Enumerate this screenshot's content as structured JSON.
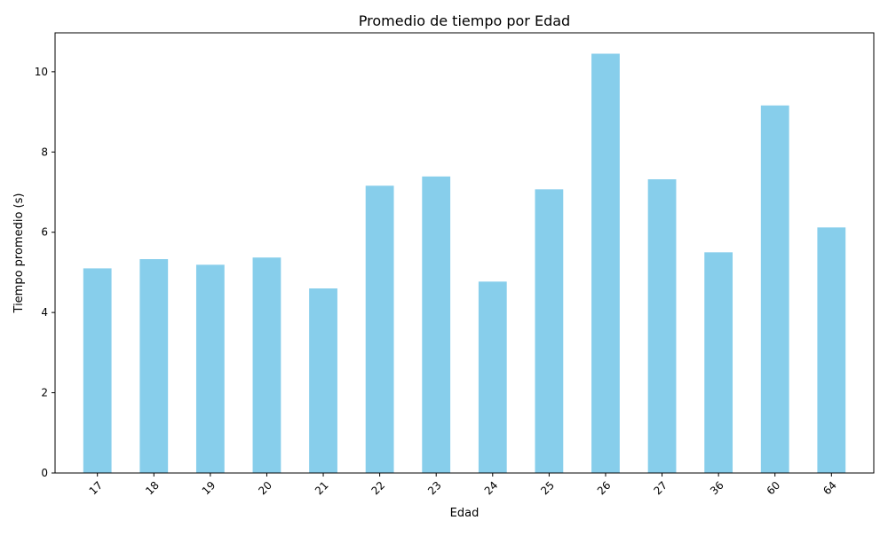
{
  "chart_data": {
    "type": "bar",
    "title": "Promedio de tiempo por Edad",
    "xlabel": "Edad",
    "ylabel": "Tiempo promedio (s)",
    "categories": [
      "17",
      "18",
      "19",
      "20",
      "21",
      "22",
      "23",
      "24",
      "25",
      "26",
      "27",
      "36",
      "60",
      "64"
    ],
    "values": [
      5.1,
      5.33,
      5.19,
      5.37,
      4.6,
      7.16,
      7.39,
      4.77,
      7.07,
      10.45,
      7.32,
      5.5,
      9.16,
      6.12
    ],
    "ylim": [
      0,
      10.97
    ],
    "yticks": [
      0,
      2,
      4,
      6,
      8,
      10
    ],
    "tick_labels": [
      "0",
      "2",
      "4",
      "6",
      "8",
      "10"
    ],
    "bar_color": "#87ceeb",
    "grid": false,
    "legend": "none"
  }
}
